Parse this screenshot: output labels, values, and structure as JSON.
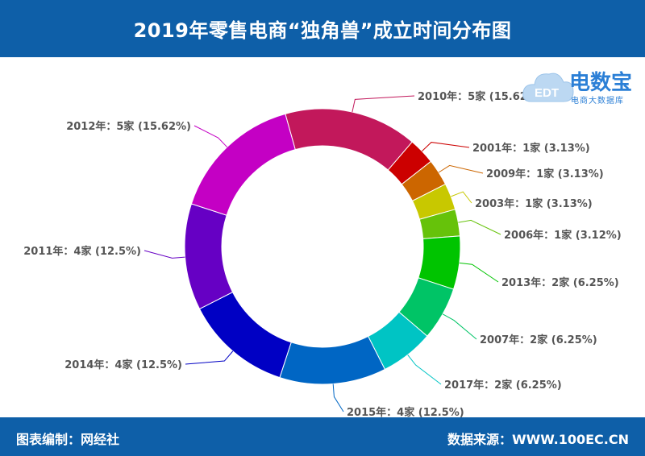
{
  "header": {
    "title": "2019年零售电商“独角兽”成立时间分布图"
  },
  "footer": {
    "left": "图表编制：网经社",
    "right": "数据来源：WWW.100EC.CN"
  },
  "logo": {
    "name": "电数宝",
    "sub": "电商大数据库",
    "badge": "EDT"
  },
  "chart_data": {
    "type": "pie",
    "variant": "donut",
    "slices": [
      {
        "label": "2010年：5家 (15.62%)",
        "year": "2010",
        "count": 5,
        "percent": 15.62,
        "color": "#c2185b"
      },
      {
        "label": "2001年：1家 (3.13%)",
        "year": "2001",
        "count": 1,
        "percent": 3.13,
        "color": "#cc0000"
      },
      {
        "label": "2009年：1家 (3.13%)",
        "year": "2009",
        "count": 1,
        "percent": 3.13,
        "color": "#cc6600"
      },
      {
        "label": "2003年：1家 (3.13%)",
        "year": "2003",
        "count": 1,
        "percent": 3.13,
        "color": "#c8c800"
      },
      {
        "label": "2006年：1家 (3.12%)",
        "year": "2006",
        "count": 1,
        "percent": 3.12,
        "color": "#66c20a"
      },
      {
        "label": "2013年：2家 (6.25%)",
        "year": "2013",
        "count": 2,
        "percent": 6.25,
        "color": "#00c400"
      },
      {
        "label": "2007年：2家 (6.25%)",
        "year": "2007",
        "count": 2,
        "percent": 6.25,
        "color": "#00c466"
      },
      {
        "label": "2017年：2家 (6.25%)",
        "year": "2017",
        "count": 2,
        "percent": 6.25,
        "color": "#00c4c4"
      },
      {
        "label": "2015年：4家 (12.5%)",
        "year": "2015",
        "count": 4,
        "percent": 12.5,
        "color": "#0066c4"
      },
      {
        "label": "2014年：4家 (12.5%)",
        "year": "2014",
        "count": 4,
        "percent": 12.5,
        "color": "#0000c4"
      },
      {
        "label": "2011年：4家 (12.5%)",
        "year": "2011",
        "count": 4,
        "percent": 12.5,
        "color": "#6600c4"
      },
      {
        "label": "2012年：5家 (15.62%)",
        "year": "2012",
        "count": 5,
        "percent": 15.62,
        "color": "#c400c4"
      }
    ]
  }
}
